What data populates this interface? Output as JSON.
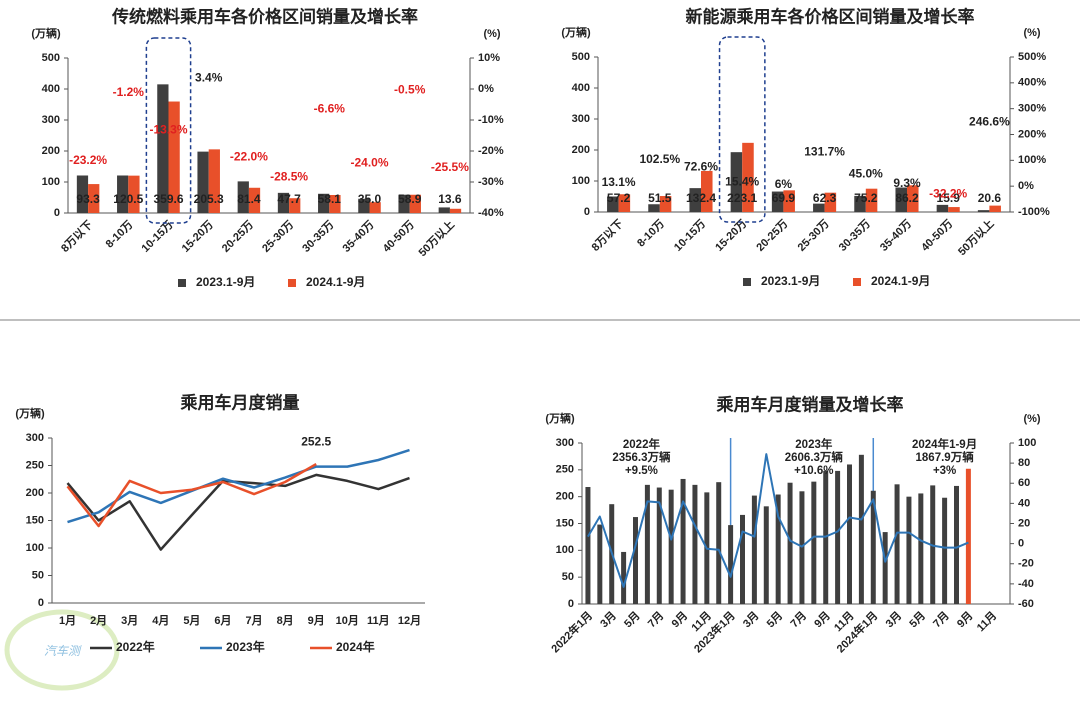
{
  "watermark": "汽车测",
  "chart_data": [
    {
      "type": "bar",
      "title": "传统燃料乘用车各价格区间销量及增长率",
      "y_label": "(万辆)",
      "y2_label": "(%)",
      "categories": [
        "8万以下",
        "8-10万",
        "10-15万",
        "15-20万",
        "20-25万",
        "25-30万",
        "30-35万",
        "35-40万",
        "40-50万",
        "50万以上"
      ],
      "series": [
        {
          "name": "2023.1-9月",
          "color": "#3f3f3f",
          "values": [
            121,
            121,
            415,
            198,
            102,
            65,
            62,
            46,
            59,
            18
          ]
        },
        {
          "name": "2024.1-9月",
          "color": "#e8502a",
          "values": [
            93.3,
            120.5,
            359.6,
            205.3,
            81.4,
            47.7,
            58.1,
            35.0,
            58.9,
            13.6
          ],
          "value_labels": [
            "93.3",
            "120.5",
            "359.6",
            "205.3",
            "81.4",
            "47.7",
            "58.1",
            "35.0",
            "58.9",
            "13.6"
          ]
        },
        {
          "type": "label",
          "axis": "y2",
          "color": "#222222",
          "negative_color": "#e02020",
          "values": [
            -23.2,
            -1.2,
            -13.3,
            3.4,
            -22.0,
            -28.5,
            -6.6,
            -24.0,
            -0.5,
            -25.5
          ],
          "value_labels": [
            "-23.2%",
            "-1.2%",
            "-13.3%",
            "3.4%",
            "-22.0%",
            "-28.5%",
            "-6.6%",
            "-24.0%",
            "-0.5%",
            "-25.5%"
          ]
        }
      ],
      "ylim": [
        0,
        500
      ],
      "yticks": [
        0,
        100,
        200,
        300,
        400,
        500
      ],
      "y2lim": [
        -40,
        10
      ],
      "y2ticks": [
        {
          "value": 10,
          "label": "10%"
        },
        {
          "value": 0,
          "label": "0%"
        },
        {
          "value": -10,
          "label": "-10%"
        },
        {
          "value": -20,
          "label": "-20%"
        },
        {
          "value": -30,
          "label": "-30%"
        },
        {
          "value": -40,
          "label": "-40%"
        }
      ],
      "highlight": 2,
      "legend": "bottom"
    },
    {
      "type": "bar",
      "title": "新能源乘用车各价格区间销量及增长率",
      "y_label": "(万辆)",
      "y2_label": "(%)",
      "categories": [
        "8万以下",
        "8-10万",
        "10-15万",
        "15-20万",
        "20-25万",
        "25-30万",
        "30-35万",
        "35-40万",
        "40-50万",
        "50万以上"
      ],
      "series": [
        {
          "name": "2023.1-9月",
          "color": "#3f3f3f",
          "values": [
            50,
            25,
            77,
            193,
            66,
            27,
            52,
            79,
            23,
            6
          ]
        },
        {
          "name": "2024.1-9月",
          "color": "#e8502a",
          "values": [
            57.2,
            51.5,
            132.4,
            223.1,
            69.9,
            62.3,
            75.2,
            86.2,
            15.9,
            20.6
          ],
          "value_labels": [
            "57.2",
            "51.5",
            "132.4",
            "223.1",
            "69.9",
            "62.3",
            "75.2",
            "86.2",
            "15.9",
            "20.6"
          ]
        },
        {
          "type": "label",
          "axis": "y2",
          "color": "#222222",
          "negative_color": "#e02020",
          "values": [
            13.1,
            102.5,
            72.6,
            15.4,
            6,
            131.7,
            45.0,
            9.3,
            -32.2,
            246.6
          ],
          "value_labels": [
            "13.1%",
            "102.5%",
            "72.6%",
            "15.4%",
            "6%",
            "131.7%",
            "45.0%",
            "9.3%",
            "-32.2%",
            "246.6%"
          ]
        }
      ],
      "ylim": [
        0,
        500
      ],
      "yticks": [
        0,
        100,
        200,
        300,
        400,
        500
      ],
      "y2lim": [
        -100,
        500
      ],
      "y2ticks": [
        {
          "value": 500,
          "label": "500%"
        },
        {
          "value": 400,
          "label": "400%"
        },
        {
          "value": 300,
          "label": "300%"
        },
        {
          "value": 200,
          "label": "200%"
        },
        {
          "value": 100,
          "label": "100%"
        },
        {
          "value": 0,
          "label": "0%"
        },
        {
          "value": -100,
          "label": "-100%"
        }
      ],
      "highlight": 3,
      "legend": "bottom"
    },
    {
      "type": "line",
      "title": "乘用车月度销量",
      "y_label": "(万辆)",
      "categories": [
        "1月",
        "2月",
        "3月",
        "4月",
        "5月",
        "6月",
        "7月",
        "8月",
        "9月",
        "10月",
        "11月",
        "12月"
      ],
      "series": [
        {
          "name": "2022年",
          "color": "#333333",
          "values": [
            218,
            150,
            185,
            97,
            160,
            222,
            218,
            213,
            233,
            222,
            207,
            227
          ]
        },
        {
          "name": "2023年",
          "color": "#2e75b6",
          "values": [
            147,
            165,
            202,
            182,
            204,
            226,
            210,
            228,
            248,
            248,
            260,
            278
          ]
        },
        {
          "name": "2024年",
          "color": "#e8502a",
          "values": [
            212,
            140,
            222,
            200,
            206,
            220,
            198,
            220,
            252.5,
            null,
            null,
            null
          ],
          "label_last": true
        }
      ],
      "ylim": [
        0,
        300
      ],
      "yticks": [
        0,
        50,
        100,
        150,
        200,
        250,
        300
      ],
      "legend": "bottom"
    },
    {
      "type": "bar",
      "title": "乘用车月度销量及增长率",
      "y_label": "(万辆)",
      "y2_label": "(%)",
      "categories": [
        "2022年1月",
        null,
        "3月",
        null,
        "5月",
        null,
        "7月",
        null,
        "9月",
        null,
        "11月",
        null,
        "2023年1月",
        null,
        "3月",
        null,
        "5月",
        null,
        "7月",
        null,
        "9月",
        null,
        "11月",
        null,
        "2024年1月",
        null,
        "3月",
        null,
        "5月",
        null,
        "7月",
        null,
        "9月",
        null,
        "11月",
        null
      ],
      "series": [
        {
          "color": "#3f3f3f",
          "values": [
            218,
            148,
            186,
            97,
            162,
            222,
            217,
            213,
            233,
            222,
            208,
            227,
            147,
            166,
            202,
            182,
            204,
            226,
            210,
            228,
            248,
            248,
            260,
            278,
            211,
            134,
            223,
            200,
            206,
            221,
            198,
            220,
            252,
            null,
            null,
            null
          ],
          "accent": 32,
          "accent_color": "#e8502a"
        },
        {
          "type": "line",
          "axis": "y2",
          "color": "#2e75b6",
          "values": [
            7,
            27,
            -9,
            -43,
            -2,
            42,
            41,
            4,
            42,
            18,
            -5,
            -6,
            -33,
            12,
            7,
            89,
            27,
            3,
            -3,
            7,
            7,
            12,
            26,
            24,
            44,
            -18,
            11,
            11,
            3,
            -2,
            -4,
            -4,
            1,
            null,
            null,
            null
          ]
        }
      ],
      "ylim": [
        0,
        300
      ],
      "yticks": [
        0,
        50,
        100,
        150,
        200,
        250,
        300
      ],
      "y2lim": [
        -60,
        100
      ],
      "y2ticks": [
        100,
        80,
        60,
        40,
        20,
        0,
        -20,
        -40,
        -60
      ],
      "annotations": [
        [
          "2022年",
          "2356.3万辆",
          "+9.5%"
        ],
        [
          "2023年",
          "2606.3万辆",
          "+10.6%"
        ],
        [
          "2024年1-9月",
          "1867.9万辆",
          "+3%"
        ]
      ]
    }
  ]
}
